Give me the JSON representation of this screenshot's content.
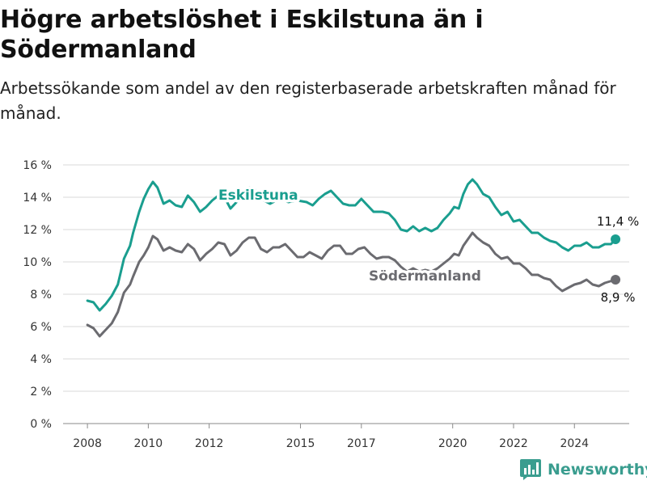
{
  "title": "Högre arbetslöshet i Eskilstuna än i Södermanland",
  "subtitle": "Arbetssökande som andel av den registerbaserade arbetskraften månad för månad.",
  "brand": "Newsworthy",
  "colors": {
    "eskilstuna": "#1a9e8f",
    "sodermanland": "#6b6b70",
    "grid": "#d9d9d9",
    "brand": "#3a9d8f"
  },
  "chart_data": {
    "type": "line",
    "ylim": [
      0,
      16
    ],
    "yticks": [
      0,
      2,
      4,
      6,
      8,
      10,
      12,
      14,
      16
    ],
    "ytick_labels": [
      "0 %",
      "2 %",
      "4 %",
      "6 %",
      "8 %",
      "10 %",
      "12 %",
      "14 %",
      "16 %"
    ],
    "xlim": [
      2007.2,
      2025.8
    ],
    "xticks": [
      2008,
      2010,
      2012,
      2015,
      2017,
      2020,
      2022,
      2024
    ],
    "xtick_labels": [
      "2008",
      "2010",
      "2012",
      "2015",
      "2017",
      "2020",
      "2022",
      "2024"
    ],
    "grid": true,
    "series": [
      {
        "name": "Eskilstuna",
        "end_label": "11,4 %",
        "points": [
          [
            2008.0,
            7.6
          ],
          [
            2008.2,
            7.5
          ],
          [
            2008.4,
            7.0
          ],
          [
            2008.6,
            7.4
          ],
          [
            2008.8,
            7.9
          ],
          [
            2009.0,
            8.6
          ],
          [
            2009.2,
            10.2
          ],
          [
            2009.4,
            11.0
          ],
          [
            2009.5,
            11.8
          ],
          [
            2009.7,
            13.1
          ],
          [
            2009.85,
            13.9
          ],
          [
            2010.0,
            14.5
          ],
          [
            2010.15,
            14.95
          ],
          [
            2010.3,
            14.6
          ],
          [
            2010.5,
            13.6
          ],
          [
            2010.7,
            13.8
          ],
          [
            2010.9,
            13.5
          ],
          [
            2011.1,
            13.4
          ],
          [
            2011.3,
            14.1
          ],
          [
            2011.5,
            13.7
          ],
          [
            2011.7,
            13.1
          ],
          [
            2011.9,
            13.4
          ],
          [
            2012.1,
            13.8
          ],
          [
            2012.3,
            14.1
          ],
          [
            2012.5,
            14.0
          ],
          [
            2012.7,
            13.3
          ],
          [
            2012.9,
            13.7
          ],
          [
            2013.1,
            14.2
          ],
          [
            2013.3,
            14.6
          ],
          [
            2013.5,
            14.5
          ],
          [
            2013.7,
            13.9
          ],
          [
            2014.0,
            13.6
          ],
          [
            2014.3,
            13.9
          ],
          [
            2014.6,
            13.7
          ],
          [
            2014.9,
            13.8
          ],
          [
            2015.2,
            13.7
          ],
          [
            2015.4,
            13.5
          ],
          [
            2015.6,
            13.9
          ],
          [
            2015.8,
            14.2
          ],
          [
            2016.0,
            14.4
          ],
          [
            2016.2,
            14.0
          ],
          [
            2016.4,
            13.6
          ],
          [
            2016.6,
            13.5
          ],
          [
            2016.8,
            13.5
          ],
          [
            2017.0,
            13.9
          ],
          [
            2017.2,
            13.5
          ],
          [
            2017.4,
            13.1
          ],
          [
            2017.7,
            13.1
          ],
          [
            2017.9,
            13.0
          ],
          [
            2018.1,
            12.6
          ],
          [
            2018.3,
            12.0
          ],
          [
            2018.5,
            11.9
          ],
          [
            2018.7,
            12.2
          ],
          [
            2018.9,
            11.9
          ],
          [
            2019.1,
            12.1
          ],
          [
            2019.3,
            11.9
          ],
          [
            2019.5,
            12.1
          ],
          [
            2019.7,
            12.6
          ],
          [
            2019.9,
            13.0
          ],
          [
            2020.05,
            13.4
          ],
          [
            2020.2,
            13.3
          ],
          [
            2020.35,
            14.2
          ],
          [
            2020.5,
            14.8
          ],
          [
            2020.65,
            15.1
          ],
          [
            2020.8,
            14.8
          ],
          [
            2021.0,
            14.2
          ],
          [
            2021.2,
            14.0
          ],
          [
            2021.4,
            13.4
          ],
          [
            2021.6,
            12.9
          ],
          [
            2021.8,
            13.1
          ],
          [
            2022.0,
            12.5
          ],
          [
            2022.2,
            12.6
          ],
          [
            2022.4,
            12.2
          ],
          [
            2022.6,
            11.8
          ],
          [
            2022.8,
            11.8
          ],
          [
            2023.0,
            11.5
          ],
          [
            2023.2,
            11.3
          ],
          [
            2023.4,
            11.2
          ],
          [
            2023.6,
            10.9
          ],
          [
            2023.8,
            10.7
          ],
          [
            2024.0,
            11.0
          ],
          [
            2024.2,
            11.0
          ],
          [
            2024.4,
            11.2
          ],
          [
            2024.6,
            10.9
          ],
          [
            2024.8,
            10.9
          ],
          [
            2025.0,
            11.1
          ],
          [
            2025.2,
            11.1
          ],
          [
            2025.35,
            11.4
          ]
        ]
      },
      {
        "name": "Södermanland",
        "end_label": "8,9 %",
        "points": [
          [
            2008.0,
            6.1
          ],
          [
            2008.2,
            5.9
          ],
          [
            2008.4,
            5.4
          ],
          [
            2008.6,
            5.8
          ],
          [
            2008.8,
            6.2
          ],
          [
            2009.0,
            6.9
          ],
          [
            2009.2,
            8.1
          ],
          [
            2009.4,
            8.6
          ],
          [
            2009.5,
            9.1
          ],
          [
            2009.7,
            10.0
          ],
          [
            2009.85,
            10.4
          ],
          [
            2010.0,
            10.9
          ],
          [
            2010.15,
            11.6
          ],
          [
            2010.3,
            11.4
          ],
          [
            2010.5,
            10.7
          ],
          [
            2010.7,
            10.9
          ],
          [
            2010.9,
            10.7
          ],
          [
            2011.1,
            10.6
          ],
          [
            2011.3,
            11.1
          ],
          [
            2011.5,
            10.8
          ],
          [
            2011.7,
            10.1
          ],
          [
            2011.9,
            10.5
          ],
          [
            2012.1,
            10.8
          ],
          [
            2012.3,
            11.2
          ],
          [
            2012.5,
            11.1
          ],
          [
            2012.7,
            10.4
          ],
          [
            2012.9,
            10.7
          ],
          [
            2013.1,
            11.2
          ],
          [
            2013.3,
            11.5
          ],
          [
            2013.5,
            11.5
          ],
          [
            2013.7,
            10.8
          ],
          [
            2013.9,
            10.6
          ],
          [
            2014.1,
            10.9
          ],
          [
            2014.3,
            10.9
          ],
          [
            2014.5,
            11.1
          ],
          [
            2014.7,
            10.7
          ],
          [
            2014.9,
            10.3
          ],
          [
            2015.1,
            10.3
          ],
          [
            2015.3,
            10.6
          ],
          [
            2015.5,
            10.4
          ],
          [
            2015.7,
            10.2
          ],
          [
            2015.9,
            10.7
          ],
          [
            2016.1,
            11.0
          ],
          [
            2016.3,
            11.0
          ],
          [
            2016.5,
            10.5
          ],
          [
            2016.7,
            10.5
          ],
          [
            2016.9,
            10.8
          ],
          [
            2017.1,
            10.9
          ],
          [
            2017.3,
            10.5
          ],
          [
            2017.5,
            10.2
          ],
          [
            2017.7,
            10.3
          ],
          [
            2017.9,
            10.3
          ],
          [
            2018.1,
            10.1
          ],
          [
            2018.3,
            9.7
          ],
          [
            2018.5,
            9.4
          ],
          [
            2018.7,
            9.6
          ],
          [
            2018.9,
            9.4
          ],
          [
            2019.1,
            9.5
          ],
          [
            2019.3,
            9.4
          ],
          [
            2019.5,
            9.6
          ],
          [
            2019.7,
            9.9
          ],
          [
            2019.9,
            10.2
          ],
          [
            2020.05,
            10.5
          ],
          [
            2020.2,
            10.4
          ],
          [
            2020.35,
            11.0
          ],
          [
            2020.5,
            11.4
          ],
          [
            2020.65,
            11.8
          ],
          [
            2020.8,
            11.5
          ],
          [
            2021.0,
            11.2
          ],
          [
            2021.2,
            11.0
          ],
          [
            2021.4,
            10.5
          ],
          [
            2021.6,
            10.2
          ],
          [
            2021.8,
            10.3
          ],
          [
            2022.0,
            9.9
          ],
          [
            2022.2,
            9.9
          ],
          [
            2022.4,
            9.6
          ],
          [
            2022.6,
            9.2
          ],
          [
            2022.8,
            9.2
          ],
          [
            2023.0,
            9.0
          ],
          [
            2023.2,
            8.9
          ],
          [
            2023.4,
            8.5
          ],
          [
            2023.6,
            8.2
          ],
          [
            2023.8,
            8.4
          ],
          [
            2024.0,
            8.6
          ],
          [
            2024.2,
            8.7
          ],
          [
            2024.4,
            8.9
          ],
          [
            2024.6,
            8.6
          ],
          [
            2024.8,
            8.5
          ],
          [
            2025.0,
            8.7
          ],
          [
            2025.35,
            8.9
          ]
        ]
      }
    ]
  }
}
